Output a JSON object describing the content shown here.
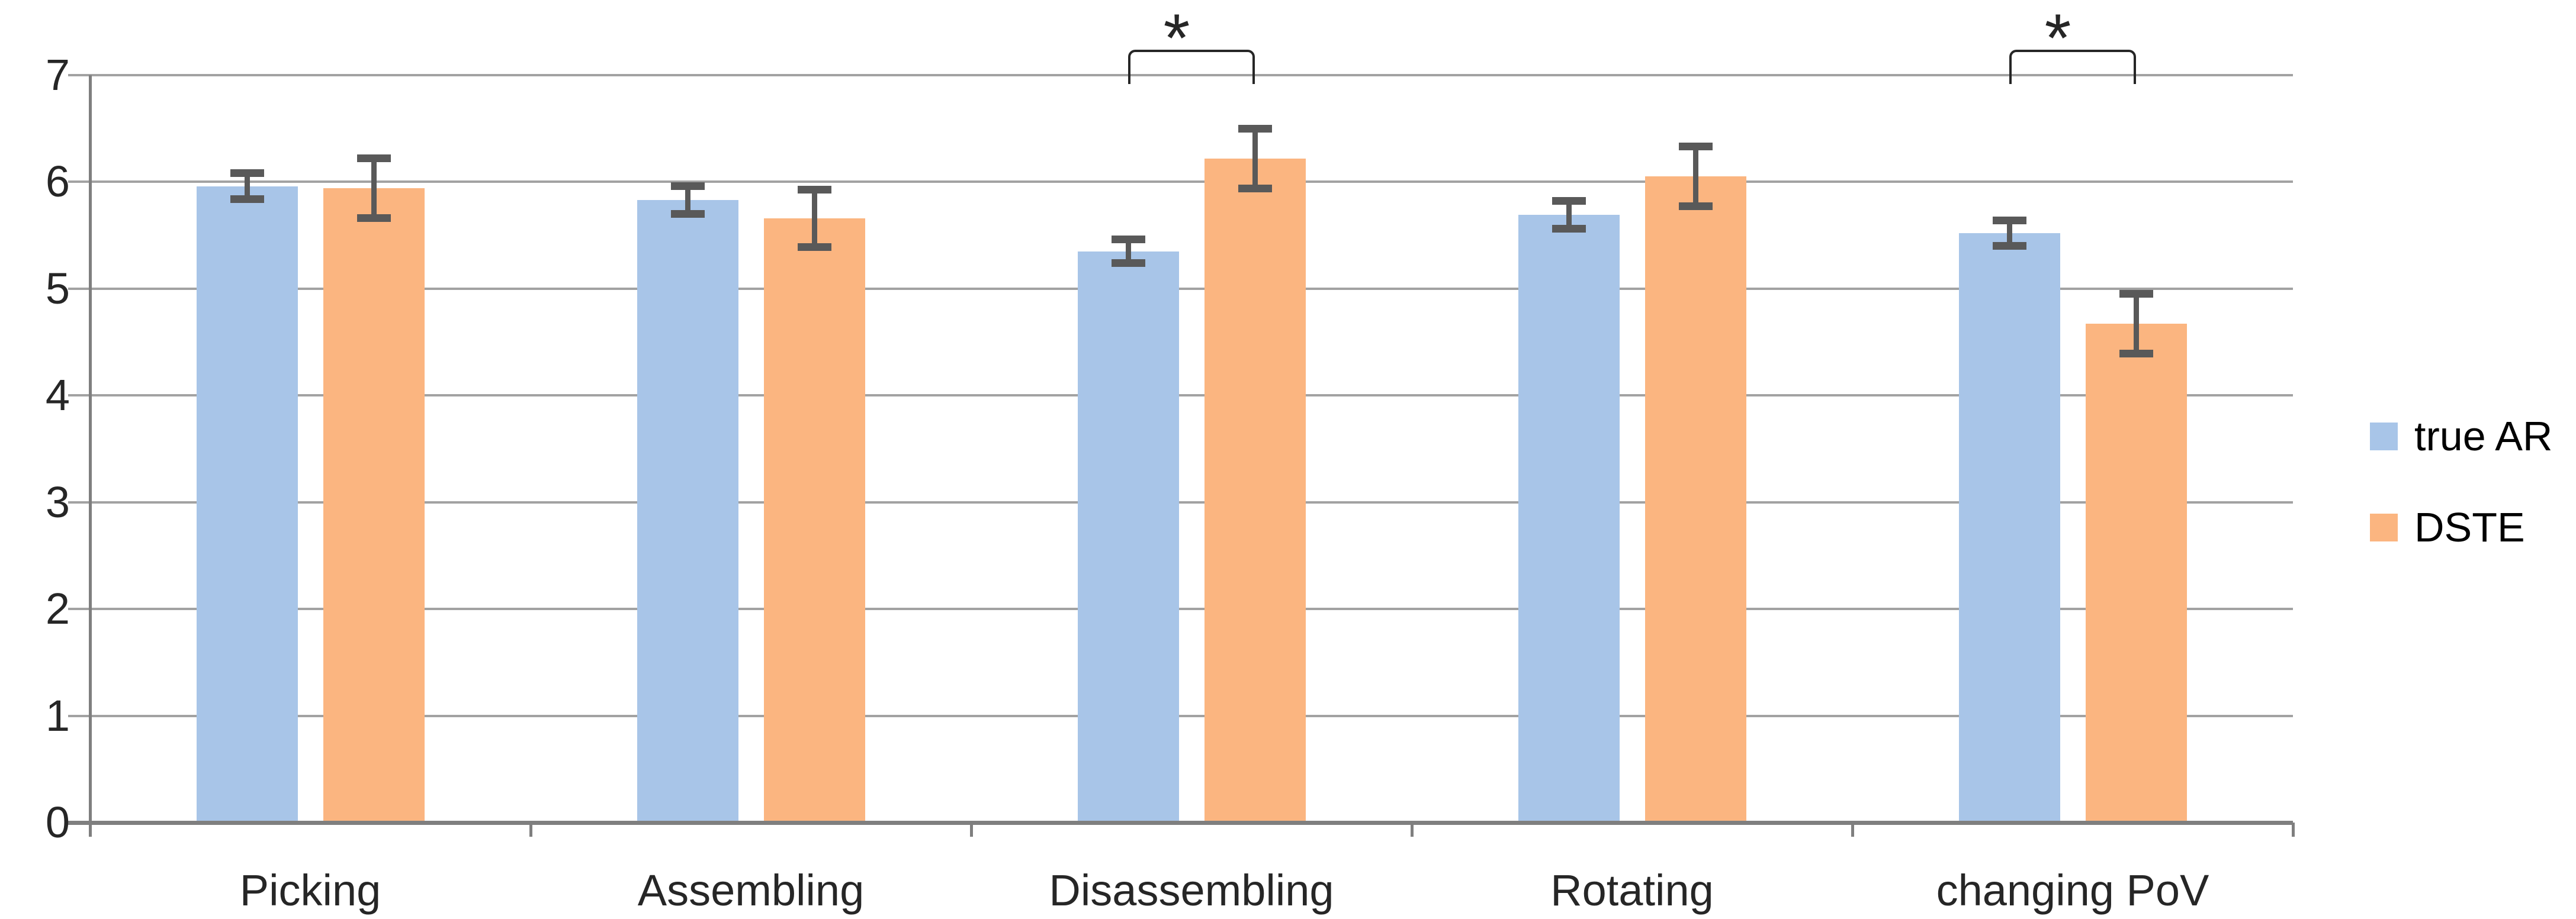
{
  "chart_data": {
    "type": "bar",
    "title": "",
    "xlabel": "",
    "ylabel": "",
    "categories": [
      "Picking",
      "Assembling",
      "Disassembling",
      "Rotating",
      "changing PoV"
    ],
    "series": [
      {
        "name": "true AR",
        "color": "#A8C5E8",
        "values": [
          5.96,
          5.83,
          5.35,
          5.69,
          5.52
        ],
        "errors": [
          0.12,
          0.13,
          0.11,
          0.13,
          0.12
        ]
      },
      {
        "name": "DSTE",
        "color": "#FBB580",
        "values": [
          5.94,
          5.66,
          6.22,
          6.05,
          4.67
        ],
        "errors": [
          0.28,
          0.27,
          0.28,
          0.28,
          0.28
        ]
      }
    ],
    "ylim": [
      0,
      7
    ],
    "yticks": [
      0,
      1,
      2,
      3,
      4,
      5,
      6,
      7
    ],
    "grid": "horizontal",
    "legend_position": "right",
    "significance_markers": [
      {
        "category": "Disassembling",
        "label": "*"
      },
      {
        "category": "changing PoV",
        "label": "*"
      }
    ],
    "colors": {
      "gridline": "#A2A2A2",
      "axis": "#7F7F7F",
      "error_bar": "#595959",
      "bracket": "#262626",
      "text": "#262626"
    }
  },
  "legend": {
    "items": [
      {
        "label": "true AR",
        "color": "#A8C5E8"
      },
      {
        "label": "DSTE",
        "color": "#FBB580"
      }
    ]
  }
}
